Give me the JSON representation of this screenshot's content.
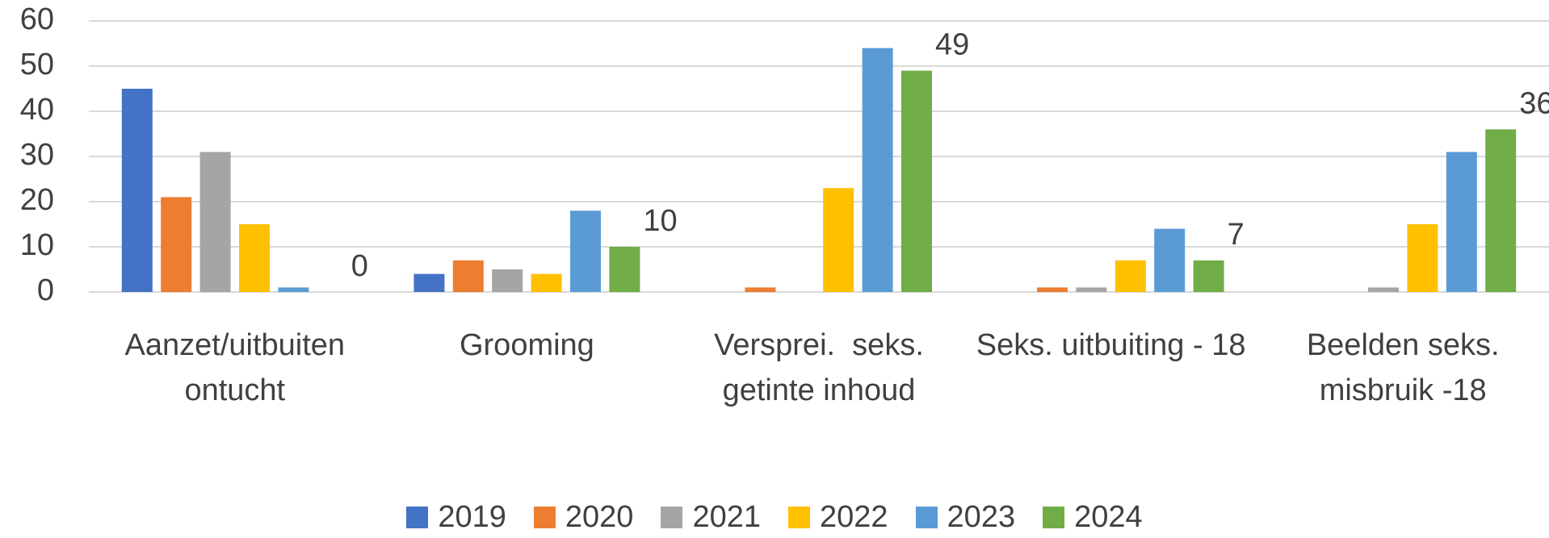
{
  "chart_data": {
    "type": "bar",
    "categories": [
      "Aanzet/uitbuiten ontucht",
      "Grooming",
      "Versprei.  seks. getinte inhoud",
      "Seks. uitbuiting - 18",
      "Beelden seks. misbruik -18"
    ],
    "series": [
      {
        "name": "2019",
        "color": "#4472c4",
        "values": [
          45,
          4,
          0,
          0,
          0
        ]
      },
      {
        "name": "2020",
        "color": "#ed7d31",
        "values": [
          21,
          7,
          1,
          1,
          0
        ]
      },
      {
        "name": "2021",
        "color": "#a5a5a5",
        "values": [
          31,
          5,
          0,
          1,
          1
        ]
      },
      {
        "name": "2022",
        "color": "#ffc000",
        "values": [
          15,
          4,
          23,
          7,
          15
        ]
      },
      {
        "name": "2023",
        "color": "#5b9bd5",
        "values": [
          1,
          18,
          54,
          14,
          31
        ]
      },
      {
        "name": "2024",
        "color": "#70ad47",
        "values": [
          0,
          10,
          49,
          7,
          36
        ],
        "data_labels": true
      }
    ],
    "ylim": [
      0,
      60
    ],
    "yticks": [
      0,
      10,
      20,
      30,
      40,
      50,
      60
    ],
    "grid": true,
    "legend": "bottom"
  }
}
